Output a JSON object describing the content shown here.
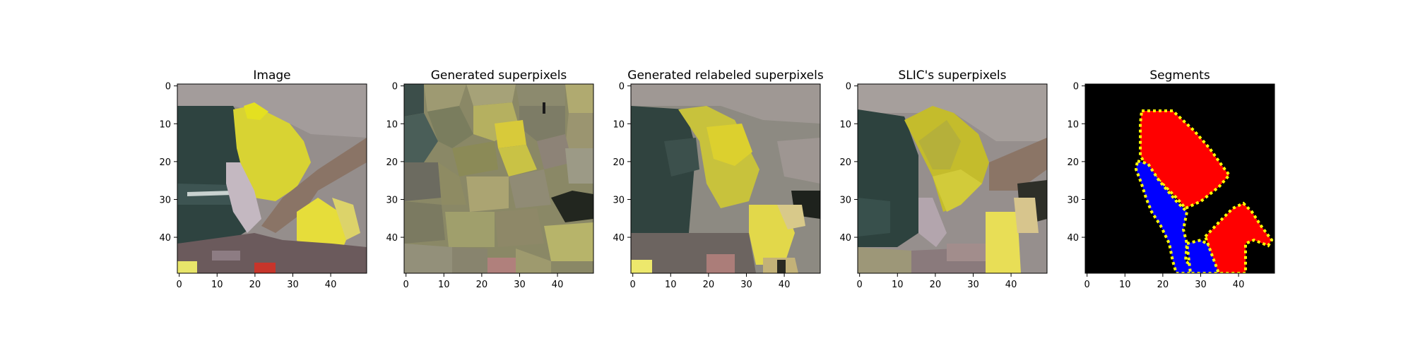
{
  "chart_data": [
    {
      "type": "image",
      "title": "Image",
      "xticks": [
        0,
        10,
        20,
        30,
        40
      ],
      "yticks": [
        0,
        10,
        20,
        30,
        40
      ],
      "extent": [
        -0.5,
        49.5,
        49.5,
        -0.5
      ]
    },
    {
      "type": "image",
      "title": "Generated superpixels",
      "xticks": [
        0,
        10,
        20,
        30,
        40
      ],
      "yticks": [
        0,
        10,
        20,
        30,
        40
      ],
      "extent": [
        -0.5,
        49.5,
        49.5,
        -0.5
      ]
    },
    {
      "type": "image",
      "title": "Generated relabeled superpixels",
      "xticks": [
        0,
        10,
        20,
        30,
        40
      ],
      "yticks": [
        0,
        10,
        20,
        30,
        40
      ],
      "extent": [
        -0.5,
        49.5,
        49.5,
        -0.5
      ]
    },
    {
      "type": "image",
      "title": "SLIC's superpixels",
      "xticks": [
        0,
        10,
        20,
        30,
        40
      ],
      "yticks": [
        0,
        10,
        20,
        30,
        40
      ],
      "extent": [
        -0.5,
        49.5,
        49.5,
        -0.5
      ]
    },
    {
      "type": "image",
      "title": "Segments",
      "xticks": [
        0,
        10,
        20,
        30,
        40
      ],
      "yticks": [
        0,
        10,
        20,
        30,
        40
      ],
      "extent": [
        -0.5,
        49.5,
        49.5,
        -0.5
      ],
      "colors": {
        "background": "#000000",
        "segment_a": "#ff0000",
        "segment_b": "#0000ff",
        "boundary": "#ffff00"
      }
    }
  ]
}
